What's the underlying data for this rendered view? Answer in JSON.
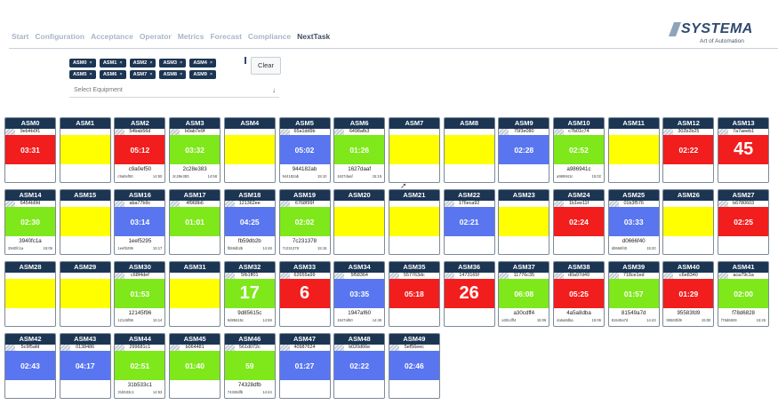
{
  "nav": {
    "items": [
      "Start",
      "Configuration",
      "Acceptance",
      "Operator",
      "Metrics",
      "Forecast",
      "Compliance",
      "NextTask"
    ],
    "active_index": 7
  },
  "logo": {
    "name": "SYSTEMA",
    "tagline": "Art of Automation"
  },
  "filter": {
    "chips": [
      "ASM0",
      "ASM1",
      "ASM2",
      "ASM3",
      "ASM4",
      "ASM5",
      "ASM6",
      "ASM7",
      "ASM8",
      "ASM9"
    ],
    "chip_close": "×",
    "clear_label": "Clear",
    "select_placeholder": "Select Equipment",
    "select_arrow": "↓"
  },
  "colors": {
    "red": "#f21d1d",
    "green": "#7ee81a",
    "yellow": "#ffff00",
    "blue": "#5976f0"
  },
  "tiles": [
    {
      "name": "ASM0",
      "serial": "9eb4b0f1",
      "status": "red",
      "value": "03:31",
      "big": false,
      "footer": "",
      "meta_left": "",
      "meta_right": ""
    },
    {
      "name": "ASM1",
      "serial": "",
      "status": "yellow",
      "value": "",
      "big": false,
      "footer": "",
      "meta_left": "",
      "meta_right": ""
    },
    {
      "name": "ASM2",
      "serial": "54bab56d",
      "status": "red",
      "value": "05:12",
      "big": false,
      "footer": "c9a0ef50",
      "meta_left": "c9a0ef50",
      "meta_right": "14:50"
    },
    {
      "name": "ASM3",
      "serial": "b0ab7e9f",
      "status": "green",
      "value": "03:32",
      "big": false,
      "footer": "2c28e383",
      "meta_left": "2c28e383",
      "meta_right": "14:58"
    },
    {
      "name": "ASM4",
      "serial": "",
      "status": "yellow",
      "value": "",
      "big": false,
      "footer": "",
      "meta_left": "",
      "meta_right": ""
    },
    {
      "name": "ASM5",
      "serial": "65a1dd9b",
      "status": "blue",
      "value": "05:02",
      "big": false,
      "footer": "944182ab",
      "meta_left": "944182ab",
      "meta_right": "15:10"
    },
    {
      "name": "ASM6",
      "serial": "6498afb3",
      "status": "green",
      "value": "01:26",
      "big": false,
      "footer": "1627daaf",
      "meta_left": "1627daaf",
      "meta_right": "15:15"
    },
    {
      "name": "ASM7",
      "serial": "",
      "status": "yellow",
      "value": "",
      "big": false,
      "footer": "",
      "meta_left": "",
      "meta_right": ""
    },
    {
      "name": "ASM8",
      "serial": "",
      "status": "yellow",
      "value": "",
      "big": false,
      "footer": "",
      "meta_left": "",
      "meta_right": ""
    },
    {
      "name": "ASM9",
      "serial": "75f3e080",
      "status": "blue",
      "value": "02:28",
      "big": false,
      "footer": "",
      "meta_left": "",
      "meta_right": ""
    },
    {
      "name": "ASM10",
      "serial": "c7b01c74",
      "status": "green",
      "value": "02:52",
      "big": false,
      "footer": "a986941c",
      "meta_left": "a986941c",
      "meta_right": "15:02"
    },
    {
      "name": "ASM11",
      "serial": "",
      "status": "yellow",
      "value": "",
      "big": false,
      "footer": "",
      "meta_left": "",
      "meta_right": ""
    },
    {
      "name": "ASM12",
      "serial": "302b2b25",
      "status": "red",
      "value": "02:22",
      "big": false,
      "footer": "",
      "meta_left": "",
      "meta_right": ""
    },
    {
      "name": "ASM13",
      "serial": "7a7aeeb1",
      "status": "red",
      "value": "45",
      "big": true,
      "footer": "",
      "meta_left": "",
      "meta_right": ""
    },
    {
      "name": "ASM14",
      "serial": "6454b6fd",
      "status": "green",
      "value": "02:30",
      "big": false,
      "footer": "3940fc1a",
      "meta_left": "3940fc1a",
      "meta_right": "15:05"
    },
    {
      "name": "ASM15",
      "serial": "",
      "status": "yellow",
      "value": "",
      "big": false,
      "footer": "",
      "meta_left": "",
      "meta_right": ""
    },
    {
      "name": "ASM16",
      "serial": "aba77b9c",
      "status": "blue",
      "value": "03:14",
      "big": false,
      "footer": "1eef5295",
      "meta_left": "1eef5295",
      "meta_right": "15:17"
    },
    {
      "name": "ASM17",
      "serial": "4f968b6",
      "status": "green",
      "value": "01:01",
      "big": false,
      "footer": "",
      "meta_left": "",
      "meta_right": ""
    },
    {
      "name": "ASM18",
      "serial": "121362ee",
      "status": "blue",
      "value": "04:25",
      "big": false,
      "footer": "fb59db2b",
      "meta_left": "fb59db2b",
      "meta_right": "14:48"
    },
    {
      "name": "ASM19",
      "serial": "6768f99f",
      "status": "green",
      "value": "02:02",
      "big": false,
      "footer": "7c231378",
      "meta_left": "7c231378",
      "meta_right": "15:18"
    },
    {
      "name": "ASM20",
      "serial": "",
      "status": "yellow",
      "value": "",
      "big": false,
      "footer": "",
      "meta_left": "",
      "meta_right": ""
    },
    {
      "name": "ASM21",
      "serial": "",
      "status": "yellow",
      "value": "",
      "big": false,
      "footer": "",
      "meta_left": "",
      "meta_right": ""
    },
    {
      "name": "ASM22",
      "serial": "176eca92",
      "status": "blue",
      "value": "02:21",
      "big": false,
      "footer": "",
      "meta_left": "",
      "meta_right": ""
    },
    {
      "name": "ASM23",
      "serial": "",
      "status": "yellow",
      "value": "",
      "big": false,
      "footer": "",
      "meta_left": "",
      "meta_right": ""
    },
    {
      "name": "ASM24",
      "serial": "1b1ee11f",
      "status": "red",
      "value": "02:24",
      "big": false,
      "footer": "",
      "meta_left": "",
      "meta_right": ""
    },
    {
      "name": "ASM25",
      "serial": "01b3f576",
      "status": "blue",
      "value": "03:33",
      "big": false,
      "footer": "d0666f40",
      "meta_left": "d0666f40",
      "meta_right": "15:20"
    },
    {
      "name": "ASM26",
      "serial": "",
      "status": "yellow",
      "value": "",
      "big": false,
      "footer": "",
      "meta_left": "",
      "meta_right": ""
    },
    {
      "name": "ASM27",
      "serial": "b6780603",
      "status": "red",
      "value": "02:25",
      "big": false,
      "footer": "",
      "meta_left": "",
      "meta_right": ""
    },
    {
      "name": "ASM28",
      "serial": "",
      "status": "yellow",
      "value": "",
      "big": false,
      "footer": "",
      "meta_left": "",
      "meta_right": ""
    },
    {
      "name": "ASM29",
      "serial": "",
      "status": "yellow",
      "value": "",
      "big": false,
      "footer": "",
      "meta_left": "",
      "meta_right": ""
    },
    {
      "name": "ASM30",
      "serial": "c68f4def",
      "status": "green",
      "value": "01:53",
      "big": false,
      "footer": "12145f96",
      "meta_left": "12145f96",
      "meta_right": "15:14"
    },
    {
      "name": "ASM31",
      "serial": "",
      "status": "yellow",
      "value": "",
      "big": false,
      "footer": "",
      "meta_left": "",
      "meta_right": ""
    },
    {
      "name": "ASM32",
      "serial": "5fb1ff01",
      "status": "green",
      "value": "17",
      "big": true,
      "footer": "9d85615c",
      "meta_left": "9d85615c",
      "meta_right": "14:59"
    },
    {
      "name": "ASM33",
      "serial": "62655a99",
      "status": "red",
      "value": "6",
      "big": true,
      "footer": "",
      "meta_left": "",
      "meta_right": ""
    },
    {
      "name": "ASM34",
      "serial": "5f58364",
      "status": "blue",
      "value": "03:35",
      "big": false,
      "footer": "1947af60",
      "meta_left": "1947af60",
      "meta_right": "14:49"
    },
    {
      "name": "ASM35",
      "serial": "557763dc",
      "status": "red",
      "value": "05:18",
      "big": false,
      "footer": "",
      "meta_left": "",
      "meta_right": ""
    },
    {
      "name": "ASM36",
      "serial": "1473165f",
      "status": "red",
      "value": "26",
      "big": true,
      "footer": "",
      "meta_left": "",
      "meta_right": ""
    },
    {
      "name": "ASM37",
      "serial": "11776c35",
      "status": "green",
      "value": "06:08",
      "big": false,
      "footer": "a30cdff4",
      "meta_left": "a30cdff4",
      "meta_right": "15:06"
    },
    {
      "name": "ASM38",
      "serial": "d0a97d49",
      "status": "red",
      "value": "05:25",
      "big": false,
      "footer": "4a5a8dba",
      "meta_left": "4a5a8dba",
      "meta_right": "15:06"
    },
    {
      "name": "ASM39",
      "serial": "718ce1ed",
      "status": "green",
      "value": "01:57",
      "big": false,
      "footer": "81549a7d",
      "meta_left": "81549a7d",
      "meta_right": "14:43"
    },
    {
      "name": "ASM40",
      "serial": "c6e8340",
      "status": "red",
      "value": "01:29",
      "big": false,
      "footer": "95583fd9",
      "meta_left": "95583fd9",
      "meta_right": "15:00"
    },
    {
      "name": "ASM41",
      "serial": "aca79c1a",
      "status": "green",
      "value": "02:00",
      "big": false,
      "footer": "f78d6828",
      "meta_left": "f78d6828",
      "meta_right": "15:26"
    },
    {
      "name": "ASM42",
      "serial": "5c9f5afd",
      "status": "blue",
      "value": "02:43",
      "big": false,
      "footer": "",
      "meta_left": "",
      "meta_right": ""
    },
    {
      "name": "ASM43",
      "serial": "0138486",
      "status": "blue",
      "value": "04:17",
      "big": false,
      "footer": "",
      "meta_left": "",
      "meta_right": ""
    },
    {
      "name": "ASM44",
      "serial": "299681c1",
      "status": "green",
      "value": "02:51",
      "big": false,
      "footer": "31b533c1",
      "meta_left": "31b533c1",
      "meta_right": "14:53"
    },
    {
      "name": "ASM45",
      "serial": "b064481",
      "status": "green",
      "value": "01:40",
      "big": false,
      "footer": "",
      "meta_left": "",
      "meta_right": ""
    },
    {
      "name": "ASM46",
      "serial": "561d072c",
      "status": "green",
      "value": "59",
      "big": false,
      "footer": "74328dfb",
      "meta_left": "74328dfb",
      "meta_right": "14:44"
    },
    {
      "name": "ASM47",
      "serial": "40987624",
      "status": "blue",
      "value": "01:27",
      "big": false,
      "footer": "",
      "meta_left": "",
      "meta_right": ""
    },
    {
      "name": "ASM48",
      "serial": "b020d66e",
      "status": "blue",
      "value": "02:22",
      "big": false,
      "footer": "",
      "meta_left": "",
      "meta_right": ""
    },
    {
      "name": "ASM49",
      "serial": "5ef56eec",
      "status": "blue",
      "value": "02:46",
      "big": false,
      "footer": "",
      "meta_left": "",
      "meta_right": ""
    }
  ]
}
